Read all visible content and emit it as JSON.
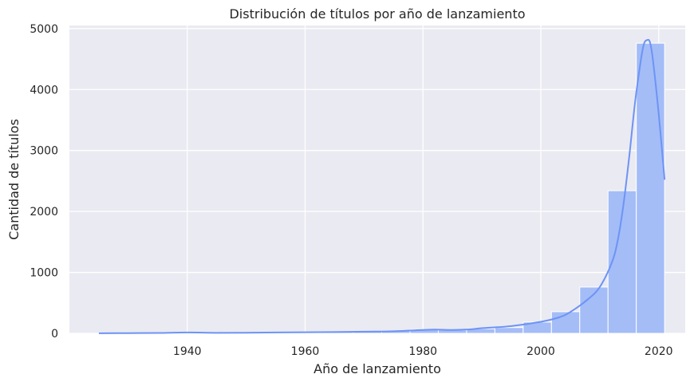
{
  "chart_data": {
    "type": "bar",
    "title": "Distribución de títulos por año de lanzamiento",
    "xlabel": "Año de lanzamiento",
    "ylabel": "Cantidad de títulos",
    "xlim": [
      1920,
      2024.5
    ],
    "ylim": [
      0,
      5050
    ],
    "x_ticks": [
      1940,
      1960,
      1980,
      2000,
      2020
    ],
    "y_ticks": [
      0,
      1000,
      2000,
      3000,
      4000,
      5000
    ],
    "grid": true,
    "bin_width": 4.8,
    "bins": [
      {
        "start": 1925.0,
        "end": 1929.8,
        "count": 3
      },
      {
        "start": 1929.8,
        "end": 1934.6,
        "count": 2
      },
      {
        "start": 1934.6,
        "end": 1939.4,
        "count": 4
      },
      {
        "start": 1939.4,
        "end": 1944.2,
        "count": 12
      },
      {
        "start": 1944.2,
        "end": 1949.0,
        "count": 8
      },
      {
        "start": 1949.0,
        "end": 1953.8,
        "count": 10
      },
      {
        "start": 1953.8,
        "end": 1958.6,
        "count": 15
      },
      {
        "start": 1958.6,
        "end": 1963.4,
        "count": 18
      },
      {
        "start": 1963.4,
        "end": 1968.2,
        "count": 22
      },
      {
        "start": 1968.2,
        "end": 1973.0,
        "count": 30
      },
      {
        "start": 1973.0,
        "end": 1977.8,
        "count": 40
      },
      {
        "start": 1977.8,
        "end": 1982.6,
        "count": 60
      },
      {
        "start": 1982.6,
        "end": 1987.4,
        "count": 55
      },
      {
        "start": 1987.4,
        "end": 1992.2,
        "count": 75
      },
      {
        "start": 1992.2,
        "end": 1997.0,
        "count": 95
      },
      {
        "start": 1997.0,
        "end": 2001.8,
        "count": 185
      },
      {
        "start": 2001.8,
        "end": 2006.6,
        "count": 355
      },
      {
        "start": 2006.6,
        "end": 2011.4,
        "count": 760
      },
      {
        "start": 2011.4,
        "end": 2016.2,
        "count": 2340
      },
      {
        "start": 2016.2,
        "end": 2021.0,
        "count": 4760
      }
    ],
    "kde": {
      "x": [
        1925,
        1930,
        1935,
        1940,
        1945,
        1950,
        1955,
        1960,
        1965,
        1970,
        1975,
        1980,
        1982,
        1985,
        1988,
        1990,
        1995,
        2000,
        2003,
        2005,
        2008,
        2010,
        2012,
        2013,
        2014,
        2015,
        2016,
        2017,
        2017.5,
        2018,
        2018.5,
        2019,
        2020,
        2021
      ],
      "y": [
        2,
        4,
        6,
        14,
        8,
        10,
        14,
        18,
        22,
        28,
        35,
        55,
        62,
        55,
        65,
        85,
        120,
        190,
        260,
        350,
        560,
        760,
        1150,
        1500,
        2100,
        2900,
        3800,
        4500,
        4750,
        4810,
        4780,
        4500,
        3600,
        2520
      ]
    },
    "colors": {
      "bar_fill": "#a4bdf7",
      "bar_edge": "#ffffff",
      "kde_line": "#6d93f5",
      "plot_background": "#eaeaf2",
      "grid": "#ffffff"
    }
  }
}
